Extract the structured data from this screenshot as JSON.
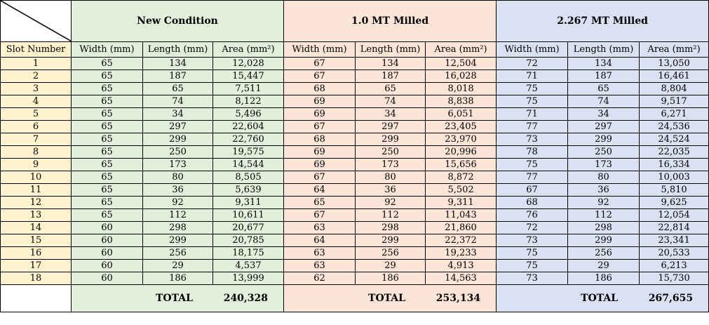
{
  "groups": [
    {
      "title": "New Condition",
      "total_label": "TOTAL",
      "total_value": "240,328"
    },
    {
      "title": "1.0 MT Milled",
      "total_label": "TOTAL",
      "total_value": "253,134"
    },
    {
      "title": "2.267 MT Milled",
      "total_label": "TOTAL",
      "total_value": "267,655"
    }
  ],
  "columns": {
    "slot": "Slot Number",
    "width": "Width (mm)",
    "length": "Length (mm)",
    "area": "Area (mm²)"
  },
  "rows": [
    [
      "1",
      "65",
      "134",
      "12,028",
      "67",
      "134",
      "12,504",
      "72",
      "134",
      "13,050"
    ],
    [
      "2",
      "65",
      "187",
      "15,447",
      "67",
      "187",
      "16,028",
      "71",
      "187",
      "16,461"
    ],
    [
      "3",
      "65",
      "65",
      "7,511",
      "68",
      "65",
      "8,018",
      "75",
      "65",
      "8,804"
    ],
    [
      "4",
      "65",
      "74",
      "8,122",
      "69",
      "74",
      "8,838",
      "75",
      "74",
      "9,517"
    ],
    [
      "5",
      "65",
      "34",
      "5,496",
      "69",
      "34",
      "6,051",
      "71",
      "34",
      "6,271"
    ],
    [
      "6",
      "65",
      "297",
      "22,604",
      "67",
      "297",
      "23,405",
      "77",
      "297",
      "24,536"
    ],
    [
      "7",
      "65",
      "299",
      "22,760",
      "68",
      "299",
      "23,970",
      "73",
      "299",
      "24,524"
    ],
    [
      "8",
      "65",
      "250",
      "19,575",
      "69",
      "250",
      "20,996",
      "78",
      "250",
      "22,035"
    ],
    [
      "9",
      "65",
      "173",
      "14,544",
      "69",
      "173",
      "15,656",
      "75",
      "173",
      "16,334"
    ],
    [
      "10",
      "65",
      "80",
      "8,505",
      "67",
      "80",
      "8,872",
      "77",
      "80",
      "10,003"
    ],
    [
      "11",
      "65",
      "36",
      "5,639",
      "64",
      "36",
      "5,502",
      "67",
      "36",
      "5,810"
    ],
    [
      "12",
      "65",
      "92",
      "9,311",
      "65",
      "92",
      "9,311",
      "68",
      "92",
      "9,625"
    ],
    [
      "13",
      "65",
      "112",
      "10,611",
      "67",
      "112",
      "11,043",
      "76",
      "112",
      "12,054"
    ],
    [
      "14",
      "60",
      "298",
      "20,677",
      "63",
      "298",
      "21,860",
      "72",
      "298",
      "22,814"
    ],
    [
      "15",
      "60",
      "299",
      "20,785",
      "64",
      "299",
      "22,372",
      "73",
      "299",
      "23,341"
    ],
    [
      "16",
      "60",
      "256",
      "18,175",
      "63",
      "256",
      "19,233",
      "75",
      "256",
      "20,533"
    ],
    [
      "17",
      "60",
      "29",
      "4,537",
      "63",
      "29",
      "4,913",
      "75",
      "29",
      "6,213"
    ],
    [
      "18",
      "60",
      "186",
      "13,999",
      "62",
      "186",
      "14,563",
      "73",
      "186",
      "15,730"
    ]
  ]
}
